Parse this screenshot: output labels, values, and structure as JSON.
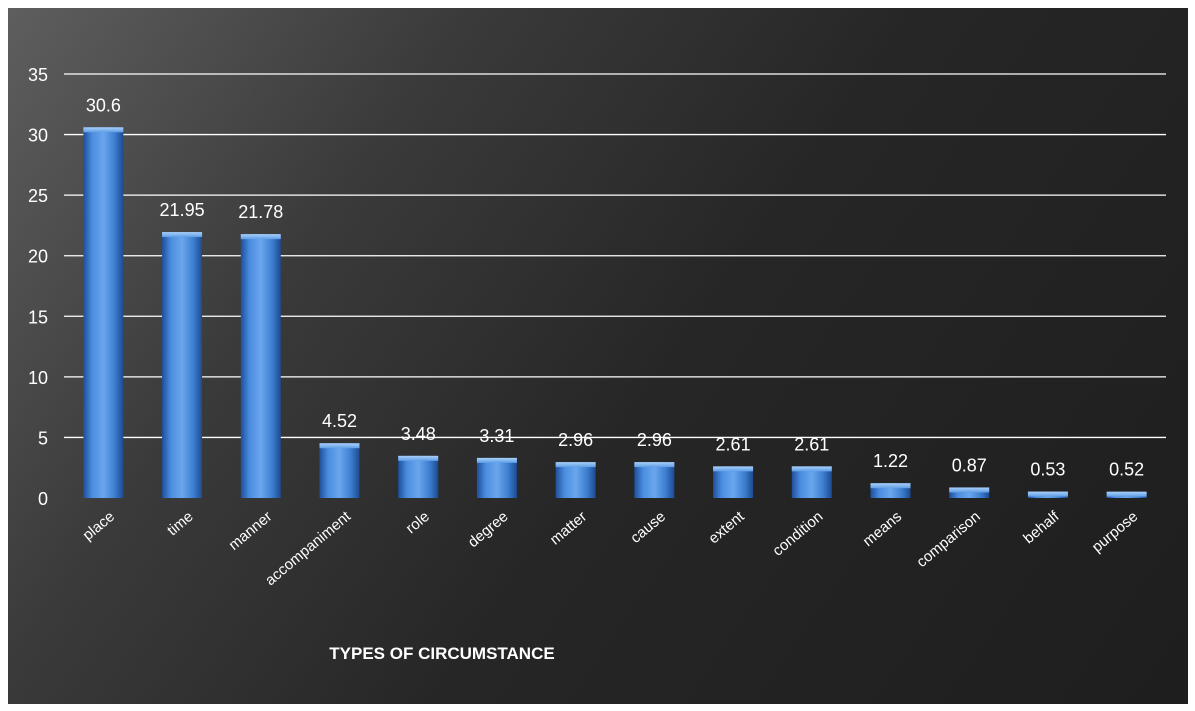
{
  "chart_data": {
    "type": "bar",
    "title": "",
    "xlabel": "TYPES OF CIRCUMSTANCE",
    "ylabel": "",
    "ylim": [
      0,
      35
    ],
    "yticks": [
      0,
      5,
      10,
      15,
      20,
      25,
      30,
      35
    ],
    "grid": true,
    "categories": [
      "place",
      "time",
      "manner",
      "accompaniment",
      "role",
      "degree",
      "matter",
      "cause",
      "extent",
      "condition",
      "means",
      "comparison",
      "behalf",
      "purpose"
    ],
    "values": [
      30.6,
      21.95,
      21.78,
      4.52,
      3.48,
      3.31,
      2.96,
      2.96,
      2.61,
      2.61,
      1.22,
      0.87,
      0.53,
      0.52
    ],
    "data_labels": [
      "30.6",
      "21.95",
      "21.78",
      "4.52",
      "3.48",
      "3.31",
      "2.96",
      "2.96",
      "2.61",
      "2.61",
      "1.22",
      "0.87",
      "0.53",
      "0.52"
    ],
    "colors": {
      "bar": "#3d7fd1",
      "bar_light": "#8ab8ee",
      "bar_dark": "#1f4f9a",
      "text": "#ffffff",
      "grid": "#ffffff"
    }
  }
}
